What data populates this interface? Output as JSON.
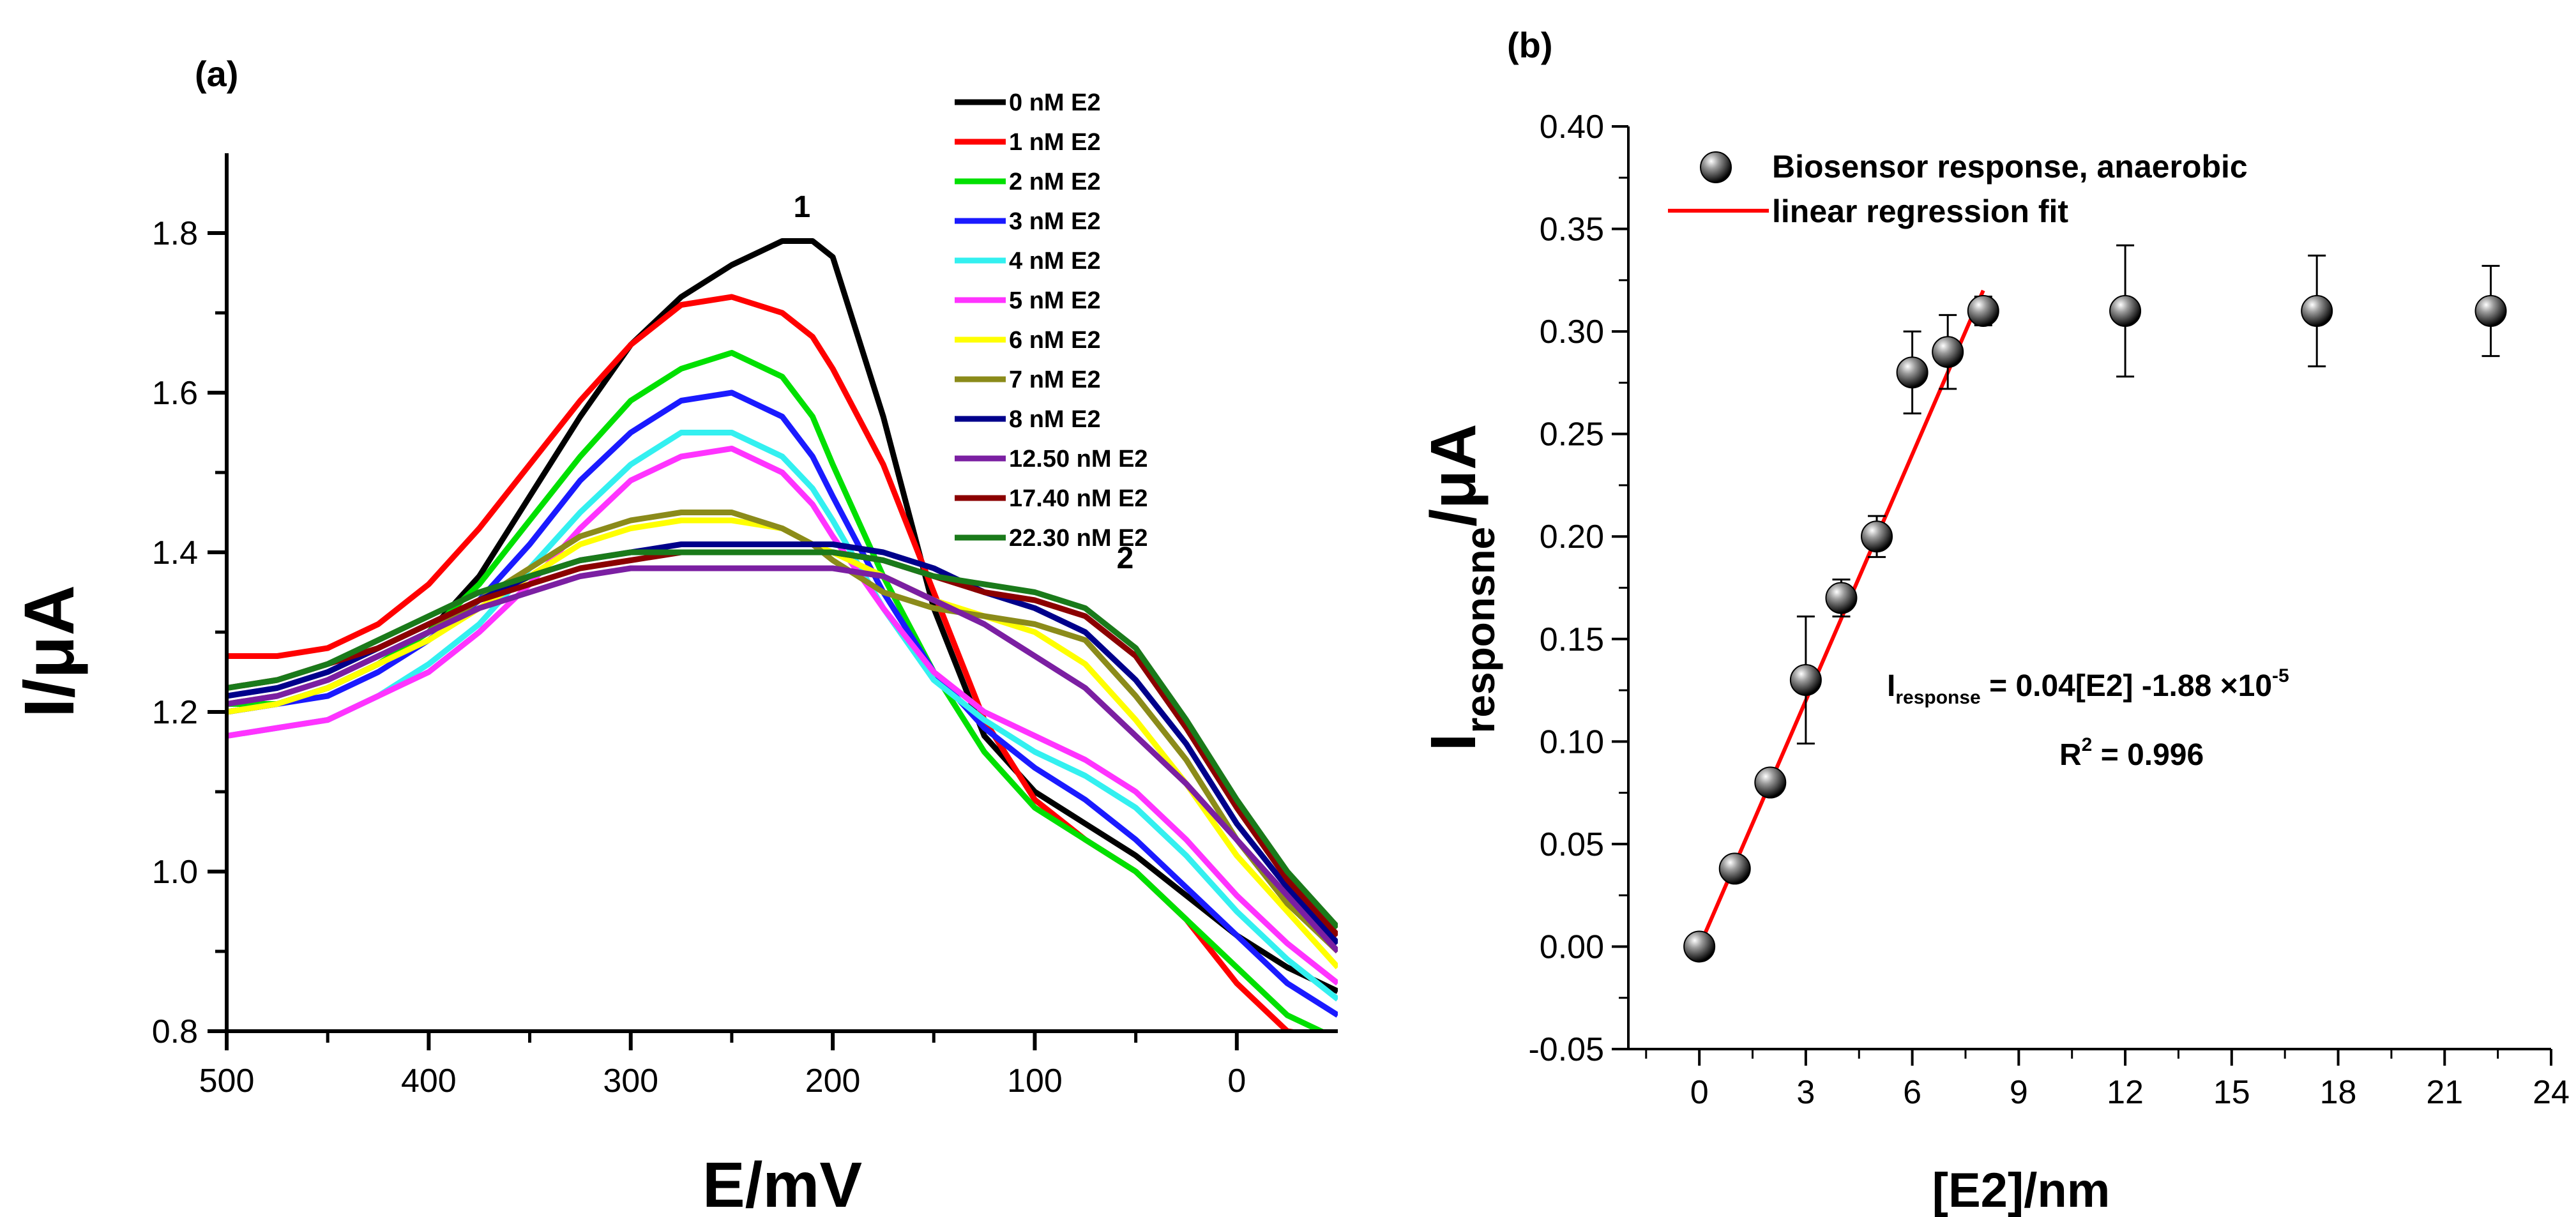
{
  "chart_data": [
    {
      "panel": "(a)",
      "type": "line",
      "xlabel": "E/mV",
      "ylabel": "I/μA",
      "xlim": [
        500,
        -50
      ],
      "ylim": [
        0.8,
        1.9
      ],
      "xticks": [
        500,
        400,
        300,
        200,
        100,
        0
      ],
      "yticks": [
        0.8,
        1.0,
        1.2,
        1.4,
        1.6,
        1.8
      ],
      "annotations": [
        {
          "text": "1",
          "x": 220,
          "y": 1.82
        },
        {
          "text": "2",
          "x": 60,
          "y": 1.38
        }
      ],
      "x": [
        500,
        475,
        450,
        425,
        400,
        375,
        350,
        325,
        300,
        275,
        250,
        225,
        210,
        200,
        175,
        150,
        125,
        100,
        75,
        50,
        25,
        0,
        -25,
        -50
      ],
      "series": [
        {
          "name": "0 nM E2",
          "color": "#000000",
          "values": [
            1.2,
            1.21,
            1.23,
            1.26,
            1.3,
            1.37,
            1.47,
            1.57,
            1.66,
            1.72,
            1.76,
            1.79,
            1.79,
            1.77,
            1.57,
            1.33,
            1.17,
            1.1,
            1.06,
            1.02,
            0.97,
            0.92,
            0.88,
            0.85
          ]
        },
        {
          "name": "1 nM E2",
          "color": "#ff0000",
          "values": [
            1.27,
            1.27,
            1.28,
            1.31,
            1.36,
            1.43,
            1.51,
            1.59,
            1.66,
            1.71,
            1.72,
            1.7,
            1.67,
            1.63,
            1.51,
            1.35,
            1.19,
            1.09,
            1.04,
            1.0,
            0.94,
            0.86,
            0.8,
            0.79
          ]
        },
        {
          "name": "2 nM E2",
          "color": "#00e000",
          "values": [
            1.21,
            1.21,
            1.23,
            1.26,
            1.3,
            1.36,
            1.44,
            1.52,
            1.59,
            1.63,
            1.65,
            1.62,
            1.57,
            1.51,
            1.37,
            1.25,
            1.15,
            1.08,
            1.04,
            1.0,
            0.94,
            0.88,
            0.82,
            0.79
          ]
        },
        {
          "name": "3 nM E2",
          "color": "#1a1aff",
          "values": [
            1.2,
            1.21,
            1.22,
            1.25,
            1.29,
            1.34,
            1.41,
            1.49,
            1.55,
            1.59,
            1.6,
            1.57,
            1.52,
            1.47,
            1.35,
            1.25,
            1.18,
            1.13,
            1.09,
            1.04,
            0.98,
            0.92,
            0.86,
            0.82
          ]
        },
        {
          "name": "4 nM E2",
          "color": "#33f0f0",
          "values": [
            1.17,
            1.18,
            1.19,
            1.22,
            1.26,
            1.31,
            1.38,
            1.45,
            1.51,
            1.55,
            1.55,
            1.52,
            1.48,
            1.44,
            1.33,
            1.24,
            1.19,
            1.15,
            1.12,
            1.08,
            1.02,
            0.95,
            0.89,
            0.84
          ]
        },
        {
          "name": "5 nM E2",
          "color": "#ff33ff",
          "values": [
            1.17,
            1.18,
            1.19,
            1.22,
            1.25,
            1.3,
            1.36,
            1.43,
            1.49,
            1.52,
            1.53,
            1.5,
            1.46,
            1.42,
            1.33,
            1.25,
            1.2,
            1.17,
            1.14,
            1.1,
            1.04,
            0.97,
            0.91,
            0.86
          ]
        },
        {
          "name": "6 nM E2",
          "color": "#ffff00",
          "values": [
            1.2,
            1.21,
            1.23,
            1.26,
            1.29,
            1.33,
            1.37,
            1.41,
            1.43,
            1.44,
            1.44,
            1.43,
            1.41,
            1.4,
            1.37,
            1.34,
            1.32,
            1.3,
            1.26,
            1.19,
            1.11,
            1.02,
            0.95,
            0.88
          ]
        },
        {
          "name": "7 nM E2",
          "color": "#8b8b1a",
          "values": [
            1.21,
            1.22,
            1.24,
            1.27,
            1.3,
            1.34,
            1.38,
            1.42,
            1.44,
            1.45,
            1.45,
            1.43,
            1.41,
            1.39,
            1.35,
            1.33,
            1.32,
            1.31,
            1.29,
            1.22,
            1.14,
            1.04,
            0.96,
            0.9
          ]
        },
        {
          "name": "8 nM E2",
          "color": "#00008b",
          "values": [
            1.22,
            1.23,
            1.25,
            1.28,
            1.31,
            1.34,
            1.37,
            1.39,
            1.4,
            1.41,
            1.41,
            1.41,
            1.41,
            1.41,
            1.4,
            1.38,
            1.35,
            1.33,
            1.3,
            1.24,
            1.16,
            1.06,
            0.98,
            0.91
          ]
        },
        {
          "name": "12.50 nM E2",
          "color": "#7b1fa2",
          "values": [
            1.21,
            1.22,
            1.24,
            1.27,
            1.3,
            1.33,
            1.35,
            1.37,
            1.38,
            1.38,
            1.38,
            1.38,
            1.38,
            1.38,
            1.37,
            1.34,
            1.31,
            1.27,
            1.23,
            1.17,
            1.11,
            1.04,
            0.97,
            0.9
          ]
        },
        {
          "name": "17.40 nM E2",
          "color": "#8b0000",
          "values": [
            1.23,
            1.24,
            1.26,
            1.28,
            1.31,
            1.34,
            1.36,
            1.38,
            1.39,
            1.4,
            1.4,
            1.4,
            1.4,
            1.4,
            1.39,
            1.37,
            1.35,
            1.34,
            1.32,
            1.27,
            1.18,
            1.08,
            0.99,
            0.92
          ]
        },
        {
          "name": "22.30 nM E2",
          "color": "#1a7a1a",
          "values": [
            1.23,
            1.24,
            1.26,
            1.29,
            1.32,
            1.35,
            1.37,
            1.39,
            1.4,
            1.4,
            1.4,
            1.4,
            1.4,
            1.4,
            1.39,
            1.37,
            1.36,
            1.35,
            1.33,
            1.28,
            1.19,
            1.09,
            1.0,
            0.93
          ]
        }
      ]
    },
    {
      "panel": "(b)",
      "type": "scatter",
      "xlabel": "[E2]/nm",
      "ylabel_main": "I",
      "ylabel_sub": "responsne",
      "ylabel_tail": "/μA",
      "xlim": [
        -2,
        24
      ],
      "ylim": [
        -0.05,
        0.4
      ],
      "xticks": [
        0,
        3,
        6,
        9,
        12,
        15,
        18,
        21,
        24
      ],
      "yticks": [
        -0.05,
        0.0,
        0.05,
        0.1,
        0.15,
        0.2,
        0.25,
        0.3,
        0.35,
        0.4
      ],
      "ytick_labels": [
        "-0.05",
        "0.00",
        "0.05",
        "0.10",
        "0.15",
        "0.20",
        "0.25",
        "0.30",
        "0.35",
        "0.40"
      ],
      "legend": [
        "Biosensor response, anaerobic",
        "linear regression fit"
      ],
      "points": {
        "x": [
          0,
          1,
          2,
          3,
          4,
          5,
          6,
          7,
          8,
          12,
          17.4,
          22.3
        ],
        "y": [
          0.0,
          0.038,
          0.08,
          0.13,
          0.17,
          0.2,
          0.28,
          0.29,
          0.31,
          0.31,
          0.31,
          0.31
        ],
        "err": [
          0.0,
          0.004,
          0.004,
          0.031,
          0.009,
          0.01,
          0.02,
          0.018,
          0.007,
          0.032,
          0.027,
          0.022
        ]
      },
      "fit": {
        "x": [
          0,
          8
        ],
        "y": [
          0.0,
          0.32
        ],
        "color": "#ff0000"
      },
      "equation": {
        "lead": "I",
        "sub": "response",
        "main": " = 0.04[E2] -1.88 ×10",
        "sup": "-5",
        "r2_lead": "R",
        "r2_sup": "2",
        "r2_tail": " = 0.996"
      }
    }
  ]
}
